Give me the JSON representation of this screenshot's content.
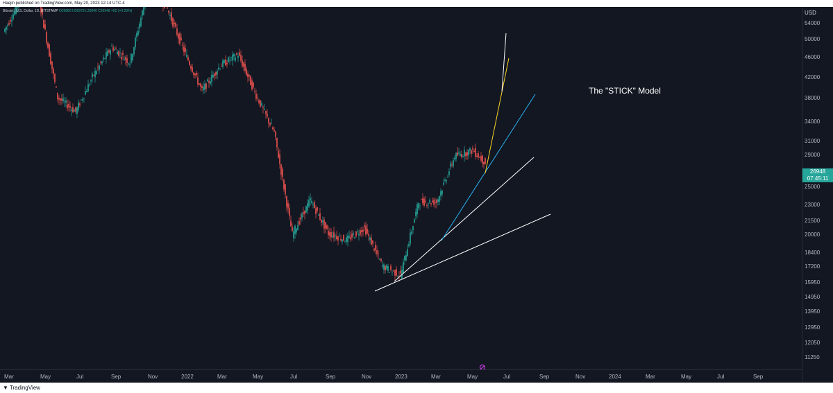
{
  "header": {
    "publish_info": "Haejin published on TradingView.com, May 20, 2023 12:14 UTC-4"
  },
  "legend": {
    "symbol": "Bitcoin / U.S. Dollar, 1D, BITSTAMP",
    "ohlc": "O26889 H26978 L26840 C26948 +55 (+0.20%)"
  },
  "annotation": {
    "text": "The \"STICK\" Model"
  },
  "price_axis": {
    "currency": "USD",
    "labels": [
      "54000",
      "50000",
      "46000",
      "42000",
      "38000",
      "34000",
      "31000",
      "29000",
      "25000",
      "23000",
      "21500",
      "20000",
      "18400",
      "17200",
      "15950",
      "14950",
      "13950",
      "12950",
      "12050",
      "11250"
    ],
    "current_price": "26948",
    "countdown": "07:45:11"
  },
  "time_axis": {
    "labels": [
      "Mar",
      "May",
      "Jul",
      "Sep",
      "Nov",
      "2022",
      "Mar",
      "May",
      "Jul",
      "Sep",
      "Nov",
      "2023",
      "Mar",
      "May",
      "Jul",
      "Sep",
      "Nov",
      "2024",
      "Mar",
      "May",
      "Jul",
      "Sep"
    ]
  },
  "footer": {
    "brand": "TradingView"
  },
  "colors": {
    "background": "#131722",
    "up": "#26a69a",
    "down": "#ef5350",
    "trendline_white": "#ffffff",
    "trendline_blue": "#29b6f6",
    "trendline_yellow": "#f9d423",
    "price_badge": "#26a69a"
  },
  "chart_data": {
    "type": "candlestick",
    "symbol": "Bitcoin / U.S. Dollar",
    "interval": "1D",
    "x": [
      "2021-03",
      "2021-04",
      "2021-05",
      "2021-06",
      "2021-07",
      "2021-08",
      "2021-09",
      "2021-10",
      "2021-11",
      "2021-12",
      "2022-01",
      "2022-02",
      "2022-03",
      "2022-04",
      "2022-05",
      "2022-06",
      "2022-07",
      "2022-08",
      "2022-09",
      "2022-10",
      "2022-11",
      "2022-12",
      "2023-01",
      "2023-02",
      "2023-03",
      "2023-04",
      "2023-05"
    ],
    "close": [
      58800,
      57700,
      37300,
      35000,
      41500,
      47100,
      43800,
      61300,
      57000,
      46300,
      38500,
      43200,
      45500,
      37700,
      31800,
      19900,
      23300,
      20000,
      19400,
      20500,
      17200,
      16500,
      23100,
      23100,
      28500,
      29300,
      26948
    ],
    "ylim": [
      10700,
      56600
    ],
    "y_axis": "log",
    "grid": false
  }
}
